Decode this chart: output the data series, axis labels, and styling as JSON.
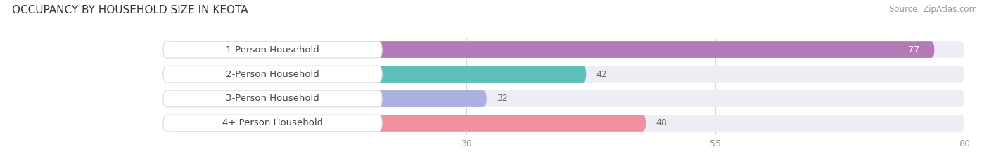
{
  "title": "OCCUPANCY BY HOUSEHOLD SIZE IN KEOTA",
  "source": "Source: ZipAtlas.com",
  "categories": [
    "1-Person Household",
    "2-Person Household",
    "3-Person Household",
    "4+ Person Household"
  ],
  "values": [
    77,
    42,
    32,
    48
  ],
  "bar_colors": [
    "#b57ab8",
    "#5bbfba",
    "#aab0e0",
    "#f090a0"
  ],
  "bar_bg_color": "#eeecf5",
  "value_color_inside": "#ffffff",
  "value_color_outside": "#666666",
  "value_inside_threshold": 60,
  "xlim_data": [
    0,
    80
  ],
  "xticks": [
    30,
    55,
    80
  ],
  "title_fontsize": 11,
  "source_fontsize": 8.5,
  "label_fontsize": 9.5,
  "value_fontsize": 9,
  "tick_fontsize": 9,
  "bg_color": "#ffffff",
  "grid_color": "#d8d8d8",
  "label_text_color": "#444444",
  "tick_color": "#999999"
}
